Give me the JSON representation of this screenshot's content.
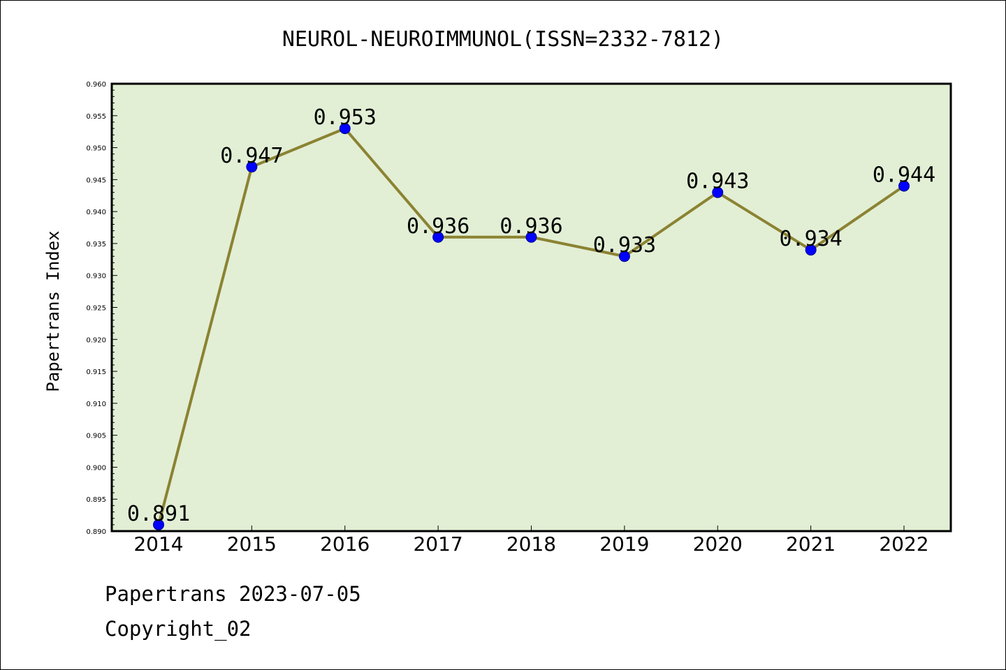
{
  "chart_data": {
    "type": "line",
    "title": "NEUROL-NEUROIMMUNOL(ISSN=2332-7812)",
    "xlabel": "",
    "ylabel": "Papertrans Index",
    "categories": [
      "2014",
      "2015",
      "2016",
      "2017",
      "2018",
      "2019",
      "2020",
      "2021",
      "2022"
    ],
    "values": [
      0.891,
      0.947,
      0.953,
      0.936,
      0.936,
      0.933,
      0.943,
      0.934,
      0.944
    ],
    "data_labels": [
      "0.891",
      "0.947",
      "0.953",
      "0.936",
      "0.936",
      "0.933",
      "0.943",
      "0.934",
      "0.944"
    ],
    "ylim": [
      0.89,
      0.96
    ],
    "yticks": [
      "0.890",
      "0.895",
      "0.900",
      "0.905",
      "0.910",
      "0.915",
      "0.920",
      "0.925",
      "0.930",
      "0.935",
      "0.940",
      "0.945",
      "0.950",
      "0.955",
      "0.960"
    ],
    "grid": false,
    "colors": {
      "plot_background": "#e2efd5",
      "line": "#8b8332",
      "marker": "#0000ff"
    }
  },
  "footer": {
    "line1": "Papertrans 2023-07-05",
    "line2": "Copyright_02"
  }
}
